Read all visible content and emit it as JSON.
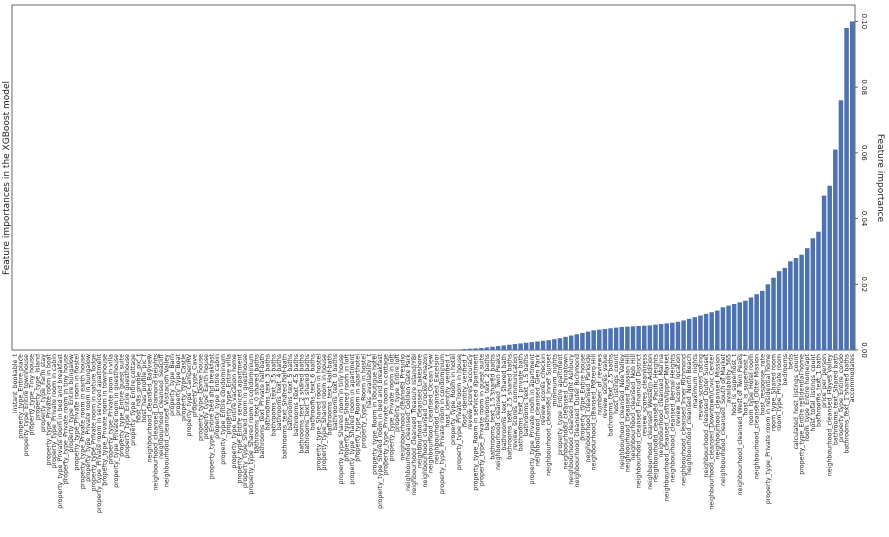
{
  "chart_data": {
    "type": "bar",
    "title": "Feature importances in the XGBoost model",
    "y_label": "Feature importance",
    "color": "#4c72b0",
    "ylim": [
      0,
      0.105
    ],
    "yticks": [
      {
        "value": 0,
        "label": "0.00"
      },
      {
        "value": 0.02,
        "label": "0.02"
      },
      {
        "value": 0.04,
        "label": "0.04"
      },
      {
        "value": 0.06,
        "label": "0.06"
      },
      {
        "value": 0.08,
        "label": "0.08"
      },
      {
        "value": 0.1,
        "label": "0.10"
      }
    ],
    "categories": [
      "instant_bookable_t",
      "property_type_Entire place",
      "property_type_Entire townhouse",
      "property_type_Tiny house",
      "property_type_Island",
      "property_type_Farm stay",
      "property_type_Private room in boat",
      "property_type_Private room in cabin",
      "property_type_Private room in bed and breakfast",
      "property_type_Private room in tiny house",
      "property_type_Entire bungalow",
      "property_type_Private room in hostel",
      "property_type_Private room in earth house",
      "property_type_Private room in bungalow",
      "property_type_Private room in nature lodge",
      "property_type_Private room in serviced apartment",
      "property_type_Private room in townhouse",
      "property_type_Private room in villa",
      "property_type_Private room in guesthouse",
      "property_type_Entire guest suite",
      "property_type_Entire guesthouse",
      "property_type_Entire cottage",
      "host_has_profile_pic_t",
      "host_has_profile_pic_f",
      "neighbourhood_cleansed_Bayview",
      "neighbourhood_cleansed_Diamond Heights",
      "neighbourhood_cleansed_Seacliff",
      "neighbourhood_cleansed_Visitacion Valley",
      "property_type_Barn",
      "property_type_Boat",
      "property_type_Castle",
      "property_type_Camper/RV",
      "property_type_Cave",
      "property_type_Dome house",
      "property_type_Earth house",
      "property_type_Entire bed and breakfast",
      "property_type_Entire cabin",
      "property_type_Entire condominium",
      "property_type_Entire villa",
      "property_type_Entire vacation home",
      "property_type_Entire serviced apartment",
      "property_type_Shared room in guesthouse",
      "property_type_Shared room in condominium",
      "bathrooms_text_0 shared baths",
      "bathrooms_text_Private half-bath",
      "bathrooms_text_3 baths",
      "bathrooms_text_3.5 baths",
      "bathrooms_text_4 baths",
      "bathrooms_text_Shared half-bath",
      "bathrooms_text_5 baths",
      "bathrooms_text_4.5 baths",
      "bathrooms_text_2 shared baths",
      "bathrooms_text_3 shared baths",
      "bathrooms_text_6 baths",
      "property_type_Shared room in hostel",
      "property_type_Shared room in house",
      "bathrooms_text_Half-bath",
      "bathrooms_text_0 baths",
      "property_type_Shared room in tiny house",
      "property_type_Shared room in loft",
      "property_type_Shared room in apartment",
      "property_type_Room in aparthotel",
      "property_type_Room in hostel",
      "has_availability_t",
      "property_type_Room in boutique hotel",
      "property_type_Shared room in bed and breakfast",
      "property_type_Private room in cottage",
      "property_type_Private room in loft",
      "property_type_Entire loft",
      "neighbourhood_cleansed_Presidio",
      "neighbourhood_cleansed_Golden Gate Park",
      "neighbourhood_cleansed_Treasure Island/YBI",
      "neighbourhood_cleansed_Lakeshore",
      "neighbourhood_cleansed_Crocker Amazon",
      "neighbourhood_cleansed_Ocean View",
      "neighbourhood_cleansed_Excelsior",
      "property_type_Private room in condominium",
      "host_identity_verified_t",
      "property_type_Room in hotel",
      "property_type_Private room in house",
      "host_identity_verified_f",
      "review_scores_accuracy",
      "property_type_Room in serviced apartment",
      "property_type_Private room in guest suite",
      "bathrooms_text_2 baths",
      "bathrooms_text_1.5 shared baths",
      "neighbourhood_cleansed_Twin Peaks",
      "bathrooms_text_1 shared bath",
      "bathrooms_text_2.5 shared baths",
      "review_scores_communication",
      "bathrooms_text_1 private bath",
      "bathrooms_text_1.5 baths",
      "property_type_Private room in apartment",
      "neighbourhood_cleansed_Glen Park",
      "review_scores_checkin",
      "neighbourhood_cleansed_Inner Sunset",
      "minimum_nights",
      "property_type_Entire apartment",
      "neighbourhood_cleansed_Chinatown",
      "neighbourhood_cleansed_Haight Ashbury",
      "neighbourhood_cleansed_Outer Richmond",
      "property_type_Entire house",
      "neighbourhood_cleansed_Parkside",
      "neighbourhood_cleansed_Potrero Hill",
      "number_of_reviews",
      "review_scores_value",
      "bathrooms_text_2.5 baths",
      "host_listings_count",
      "neighbourhood_cleansed_Noe Valley",
      "neighbourhood_cleansed_Russian Hill",
      "neighbourhood_cleansed_Nob Hill",
      "neighbourhood_cleansed_Financial District",
      "review_scores_cleanliness",
      "neighbourhood_cleansed_Western Addition",
      "neighbourhood_cleansed_Pacific Heights",
      "neighbourhood_cleansed_Marina",
      "neighbourhood_cleansed_Castro/Upper Market",
      "neighbourhood_cleansed_Bernal Heights",
      "review_scores_location",
      "neighbourhood_cleansed_Inner Richmond",
      "neighbourhood_cleansed_North Beach",
      "maximum_nights",
      "review_scores_rating",
      "neighbourhood_cleansed_Outer Sunset",
      "neighbourhood_cleansed_Downtown/Civic Center",
      "neighbourhood_cleansed_Mission",
      "neighbourhood_cleansed_South of Market",
      "availability_365",
      "host_is_superhost_t",
      "neighbourhood_cleansed_West of Twin Peaks",
      "host_is_superhost_f",
      "room_type_Hotel room",
      "neighbourhood_cleansed_Outer Mission",
      "host_response_rate",
      "property_type_Private room in residential home",
      "room_type_Shared room",
      "room_type_Private room",
      "bedrooms",
      "beds",
      "calculated_host_listings_count",
      "property_type_Entire residential home",
      "room_type_Entire home/apt",
      "host_total_listings_count",
      "bathrooms_text_1 bath",
      "price_per_person",
      "neighbourhood_cleansed_Hayes Valley",
      "bathrooms_text_Shared bath",
      "property_type_Entire_condo",
      "bathrooms_text_1 shared baths",
      "accommodates"
    ],
    "values": [
      0,
      0,
      0,
      0,
      0,
      0,
      0,
      0,
      0,
      0,
      0,
      0,
      0,
      0,
      0,
      0,
      0,
      0,
      0,
      0,
      0,
      0,
      0,
      0,
      0,
      0,
      0,
      0,
      0,
      0,
      0,
      0,
      0,
      0,
      0,
      0,
      0,
      0,
      0,
      0,
      0,
      0,
      0,
      0,
      0,
      0,
      0,
      0,
      0,
      0,
      0,
      0,
      0,
      0,
      0,
      0,
      0,
      0,
      0,
      0,
      0,
      0,
      0,
      0,
      0,
      0,
      0,
      0,
      0,
      0,
      0,
      0,
      0,
      0,
      0,
      0,
      0,
      0,
      0,
      0,
      0.0003,
      0.0004,
      0.0005,
      0.0006,
      0.0008,
      0.001,
      0.0012,
      0.0014,
      0.0016,
      0.0018,
      0.002,
      0.0022,
      0.0024,
      0.0026,
      0.0028,
      0.003,
      0.0033,
      0.0036,
      0.004,
      0.0044,
      0.0048,
      0.0052,
      0.0056,
      0.006,
      0.0062,
      0.0064,
      0.0066,
      0.0068,
      0.007,
      0.0071,
      0.0072,
      0.0073,
      0.0074,
      0.0075,
      0.0077,
      0.0079,
      0.0081,
      0.0083,
      0.0086,
      0.009,
      0.0095,
      0.01,
      0.0105,
      0.011,
      0.0115,
      0.012,
      0.013,
      0.0135,
      0.014,
      0.0145,
      0.015,
      0.016,
      0.017,
      0.018,
      0.02,
      0.022,
      0.024,
      0.025,
      0.027,
      0.028,
      0.029,
      0.031,
      0.034,
      0.036,
      0.047,
      0.05,
      0.061,
      0.076,
      0.098,
      0.1
    ]
  }
}
